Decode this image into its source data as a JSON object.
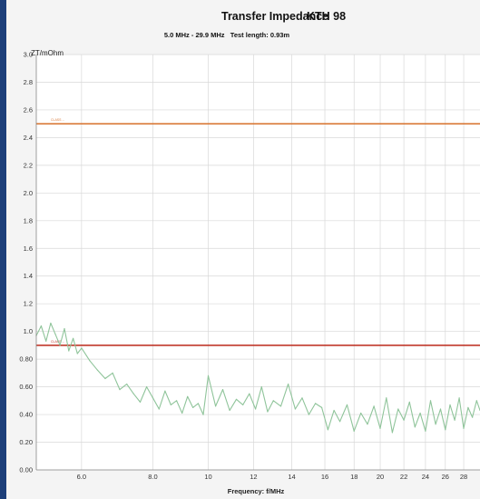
{
  "chart_data": {
    "type": "line",
    "title": "Transfer Impedance",
    "title_id": "KTH 98",
    "subtitle": "5.0 MHz - 29.9 MHz   Test length: 0.93m",
    "ylabel": "ZT/mOhm",
    "xlabel": "Frequency: f/MHz",
    "x_scale": "log",
    "xlim": [
      5.0,
      29.9
    ],
    "ylim": [
      0,
      3.0
    ],
    "grid": true,
    "x_ticks": [
      {
        "value": 6,
        "label": "6.0"
      },
      {
        "value": 8,
        "label": "8.0"
      },
      {
        "value": 10,
        "label": "10"
      },
      {
        "value": 12,
        "label": "12"
      },
      {
        "value": 14,
        "label": "14"
      },
      {
        "value": 16,
        "label": "16"
      },
      {
        "value": 18,
        "label": "18"
      },
      {
        "value": 20,
        "label": "20"
      },
      {
        "value": 22,
        "label": "22"
      },
      {
        "value": 24,
        "label": "24"
      },
      {
        "value": 26,
        "label": "26"
      },
      {
        "value": 28,
        "label": "28"
      }
    ],
    "y_ticks": [
      {
        "value": 0.0,
        "label": "0.00"
      },
      {
        "value": 0.2,
        "label": "0.20"
      },
      {
        "value": 0.4,
        "label": "0.40"
      },
      {
        "value": 0.6,
        "label": "0.60"
      },
      {
        "value": 0.8,
        "label": "0.80"
      },
      {
        "value": 1.0,
        "label": "1.0"
      },
      {
        "value": 1.2,
        "label": "1.2"
      },
      {
        "value": 1.4,
        "label": "1.4"
      },
      {
        "value": 1.6,
        "label": "1.6"
      },
      {
        "value": 1.8,
        "label": "1.8"
      },
      {
        "value": 2.0,
        "label": "2.0"
      },
      {
        "value": 2.2,
        "label": "2.2"
      },
      {
        "value": 2.4,
        "label": "2.4"
      },
      {
        "value": 2.6,
        "label": "2.6"
      },
      {
        "value": 2.8,
        "label": "2.8"
      },
      {
        "value": 3.0,
        "label": "3.0"
      }
    ],
    "limit_lines": [
      {
        "y": 2.5,
        "color": "#d97a3a",
        "label": "CLASS ..."
      },
      {
        "y": 0.9,
        "color": "#c0392b",
        "label": "CLASS ..."
      }
    ],
    "series": [
      {
        "color": "#8fc49a",
        "label": "",
        "x": [
          5.0,
          5.1,
          5.2,
          5.3,
          5.4,
          5.5,
          5.6,
          5.7,
          5.8,
          5.9,
          6.0,
          6.2,
          6.4,
          6.6,
          6.8,
          7.0,
          7.2,
          7.4,
          7.6,
          7.8,
          8.0,
          8.2,
          8.4,
          8.6,
          8.8,
          9.0,
          9.2,
          9.4,
          9.6,
          9.8,
          10.0,
          10.3,
          10.6,
          10.9,
          11.2,
          11.5,
          11.8,
          12.1,
          12.4,
          12.7,
          13.0,
          13.4,
          13.8,
          14.2,
          14.6,
          15.0,
          15.4,
          15.8,
          16.2,
          16.6,
          17.0,
          17.5,
          18.0,
          18.5,
          19.0,
          19.5,
          20.0,
          20.5,
          21.0,
          21.5,
          22.0,
          22.5,
          23.0,
          23.5,
          24.0,
          24.5,
          25.0,
          25.5,
          26.0,
          26.5,
          27.0,
          27.5,
          28.0,
          28.5,
          29.0,
          29.5,
          29.9
        ],
        "y": [
          0.97,
          1.04,
          0.93,
          1.06,
          0.98,
          0.9,
          1.02,
          0.86,
          0.95,
          0.84,
          0.88,
          0.79,
          0.72,
          0.66,
          0.7,
          0.58,
          0.62,
          0.55,
          0.49,
          0.6,
          0.52,
          0.44,
          0.57,
          0.47,
          0.5,
          0.41,
          0.53,
          0.45,
          0.48,
          0.4,
          0.68,
          0.46,
          0.58,
          0.43,
          0.51,
          0.47,
          0.55,
          0.44,
          0.6,
          0.42,
          0.5,
          0.46,
          0.62,
          0.44,
          0.52,
          0.4,
          0.48,
          0.45,
          0.29,
          0.43,
          0.35,
          0.47,
          0.28,
          0.41,
          0.33,
          0.46,
          0.3,
          0.52,
          0.27,
          0.44,
          0.36,
          0.49,
          0.31,
          0.41,
          0.28,
          0.5,
          0.33,
          0.44,
          0.29,
          0.47,
          0.36,
          0.52,
          0.3,
          0.45,
          0.38,
          0.5,
          0.43
        ]
      }
    ]
  }
}
